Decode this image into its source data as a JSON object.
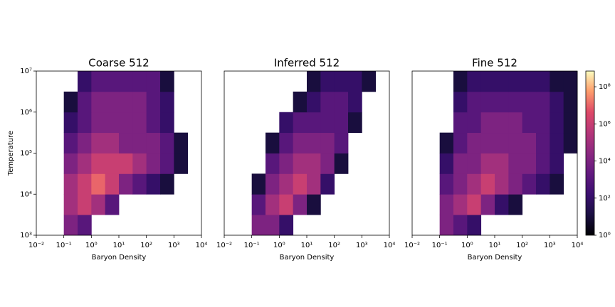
{
  "chart_data": [
    {
      "type": "hist2d",
      "title": "Coarse 512",
      "xlabel": "Baryon Density",
      "ylabel": "Temperature",
      "xscale": "log",
      "yscale": "log",
      "xlim": [
        0.01,
        10000
      ],
      "ylim": [
        1000,
        10000000
      ],
      "xticks": [
        {
          "value": 0.01,
          "label": "10⁻²"
        },
        {
          "value": 0.1,
          "label": "10⁻¹"
        },
        {
          "value": 1,
          "label": "10⁰"
        },
        {
          "value": 10,
          "label": "10¹"
        },
        {
          "value": 100,
          "label": "10²"
        },
        {
          "value": 1000,
          "label": "10³"
        },
        {
          "value": 10000,
          "label": "10⁴"
        }
      ],
      "yticks": [
        {
          "value": 1000,
          "label": "10³"
        },
        {
          "value": 10000,
          "label": "10⁴"
        },
        {
          "value": 100000,
          "label": "10⁵"
        },
        {
          "value": 1000000,
          "label": "10⁶"
        },
        {
          "value": 10000000,
          "label": "10⁷"
        }
      ],
      "xbins": [
        0.01,
        0.031623,
        0.1,
        0.31623,
        1,
        3.1623,
        10,
        31.623,
        100,
        316.23,
        1000,
        3162.3,
        10000
      ],
      "ybins": [
        1000,
        3162.3,
        10000,
        31623,
        100000,
        316230,
        1000000,
        3162300,
        10000000
      ],
      "counts": [
        [
          null,
          null,
          10000.0,
          1000.0,
          null,
          null,
          null,
          null,
          null,
          null,
          null,
          null
        ],
        [
          null,
          null,
          100000.0,
          1000000.0,
          100000.0,
          1000.0,
          null,
          null,
          null,
          null,
          null,
          null
        ],
        [
          null,
          null,
          100000.0,
          1000000.0,
          10000000.0,
          1000000.0,
          10000.0,
          1000.0,
          100,
          10,
          null,
          null
        ],
        [
          null,
          null,
          10000.0,
          100000.0,
          1000000.0,
          1000000.0,
          1000000.0,
          100000.0,
          10000.0,
          1000.0,
          10,
          null
        ],
        [
          null,
          null,
          1000.0,
          10000.0,
          100000.0,
          100000.0,
          10000.0,
          10000.0,
          10000.0,
          1000.0,
          10,
          null
        ],
        [
          null,
          null,
          100,
          1000.0,
          10000.0,
          10000.0,
          10000.0,
          10000.0,
          1000.0,
          100,
          null,
          null
        ],
        [
          null,
          null,
          10,
          1000.0,
          10000.0,
          10000.0,
          10000.0,
          10000.0,
          1000.0,
          100,
          null,
          null
        ],
        [
          null,
          null,
          null,
          100,
          1000.0,
          1000.0,
          1000.0,
          1000.0,
          1000.0,
          10,
          null,
          null
        ]
      ]
    },
    {
      "type": "hist2d",
      "title": "Inferred 512",
      "xlabel": "Baryon Density",
      "xscale": "log",
      "yscale": "log",
      "xlim": [
        0.01,
        10000
      ],
      "ylim": [
        1000,
        10000000
      ],
      "xticks": [
        {
          "value": 0.01,
          "label": "10⁻²"
        },
        {
          "value": 0.1,
          "label": "10⁻¹"
        },
        {
          "value": 1,
          "label": "10⁰"
        },
        {
          "value": 10,
          "label": "10¹"
        },
        {
          "value": 100,
          "label": "10²"
        },
        {
          "value": 1000,
          "label": "10³"
        },
        {
          "value": 10000,
          "label": "10⁴"
        }
      ],
      "xbins": [
        0.01,
        0.031623,
        0.1,
        0.31623,
        1,
        3.1623,
        10,
        31.623,
        100,
        316.23,
        1000,
        3162.3,
        10000
      ],
      "ybins": [
        1000,
        3162.3,
        10000,
        31623,
        100000,
        316230,
        1000000,
        3162300,
        10000000
      ],
      "counts": [
        [
          null,
          null,
          10000.0,
          10000.0,
          100,
          null,
          null,
          null,
          null,
          null,
          null,
          null
        ],
        [
          null,
          null,
          1000.0,
          100000.0,
          1000000.0,
          10000.0,
          10,
          null,
          null,
          null,
          null,
          null
        ],
        [
          null,
          null,
          10,
          10000.0,
          100000.0,
          1000000.0,
          100000.0,
          100,
          null,
          null,
          null,
          null
        ],
        [
          null,
          null,
          null,
          1000.0,
          10000.0,
          100000.0,
          100000.0,
          10000.0,
          10,
          null,
          null,
          null
        ],
        [
          null,
          null,
          null,
          10,
          1000.0,
          10000.0,
          10000.0,
          10000.0,
          1000.0,
          null,
          null,
          null
        ],
        [
          null,
          null,
          null,
          null,
          100,
          1000.0,
          1000.0,
          1000.0,
          1000.0,
          10,
          null,
          null
        ],
        [
          null,
          null,
          null,
          null,
          null,
          10,
          100,
          1000.0,
          1000.0,
          100,
          null,
          null
        ],
        [
          null,
          null,
          null,
          null,
          null,
          null,
          10,
          100,
          100,
          100,
          10,
          null
        ]
      ]
    },
    {
      "type": "hist2d",
      "title": "Fine 512",
      "xlabel": "Baryon Density",
      "xscale": "log",
      "yscale": "log",
      "xlim": [
        0.01,
        10000
      ],
      "ylim": [
        1000,
        10000000
      ],
      "xticks": [
        {
          "value": 0.01,
          "label": "10⁻²"
        },
        {
          "value": 0.1,
          "label": "10⁻¹"
        },
        {
          "value": 1,
          "label": "10⁰"
        },
        {
          "value": 10,
          "label": "10¹"
        },
        {
          "value": 100,
          "label": "10²"
        },
        {
          "value": 1000,
          "label": "10³"
        },
        {
          "value": 10000,
          "label": "10⁴"
        }
      ],
      "xbins": [
        0.01,
        0.031623,
        0.1,
        0.31623,
        1,
        3.1623,
        10,
        31.623,
        100,
        316.23,
        1000,
        3162.3,
        10000
      ],
      "ybins": [
        1000,
        3162.3,
        10000,
        31623,
        100000,
        316230,
        1000000,
        3162300,
        10000000
      ],
      "counts": [
        [
          null,
          null,
          10000.0,
          1000.0,
          100,
          null,
          null,
          null,
          null,
          null,
          null,
          null
        ],
        [
          null,
          null,
          10000.0,
          100000.0,
          1000000.0,
          10000.0,
          100,
          10,
          null,
          null,
          null,
          null
        ],
        [
          null,
          null,
          1000.0,
          10000.0,
          100000.0,
          1000000.0,
          100000.0,
          10000.0,
          1000.0,
          100,
          10,
          null
        ],
        [
          null,
          null,
          100,
          10000.0,
          10000.0,
          100000.0,
          100000.0,
          10000.0,
          10000.0,
          1000.0,
          100,
          null
        ],
        [
          null,
          null,
          10,
          1000.0,
          10000.0,
          10000.0,
          10000.0,
          10000.0,
          10000.0,
          1000.0,
          100,
          10
        ],
        [
          null,
          null,
          null,
          1000.0,
          1000.0,
          10000.0,
          10000.0,
          10000.0,
          1000.0,
          1000.0,
          100,
          10
        ],
        [
          null,
          null,
          null,
          100,
          1000.0,
          1000.0,
          1000.0,
          1000.0,
          1000.0,
          1000.0,
          100,
          10
        ],
        [
          null,
          null,
          null,
          10,
          100,
          100,
          100,
          100,
          100,
          100,
          10,
          10
        ]
      ]
    }
  ],
  "colorbar": {
    "colormap": "magma",
    "scale": "log",
    "lim": [
      1,
      700000000
    ],
    "ticks": [
      {
        "value": 1,
        "label": "10⁰"
      },
      {
        "value": 100,
        "label": "10²"
      },
      {
        "value": 10000,
        "label": "10⁴"
      },
      {
        "value": 1000000,
        "label": "10⁶"
      },
      {
        "value": 100000000,
        "label": "10⁸"
      }
    ]
  }
}
